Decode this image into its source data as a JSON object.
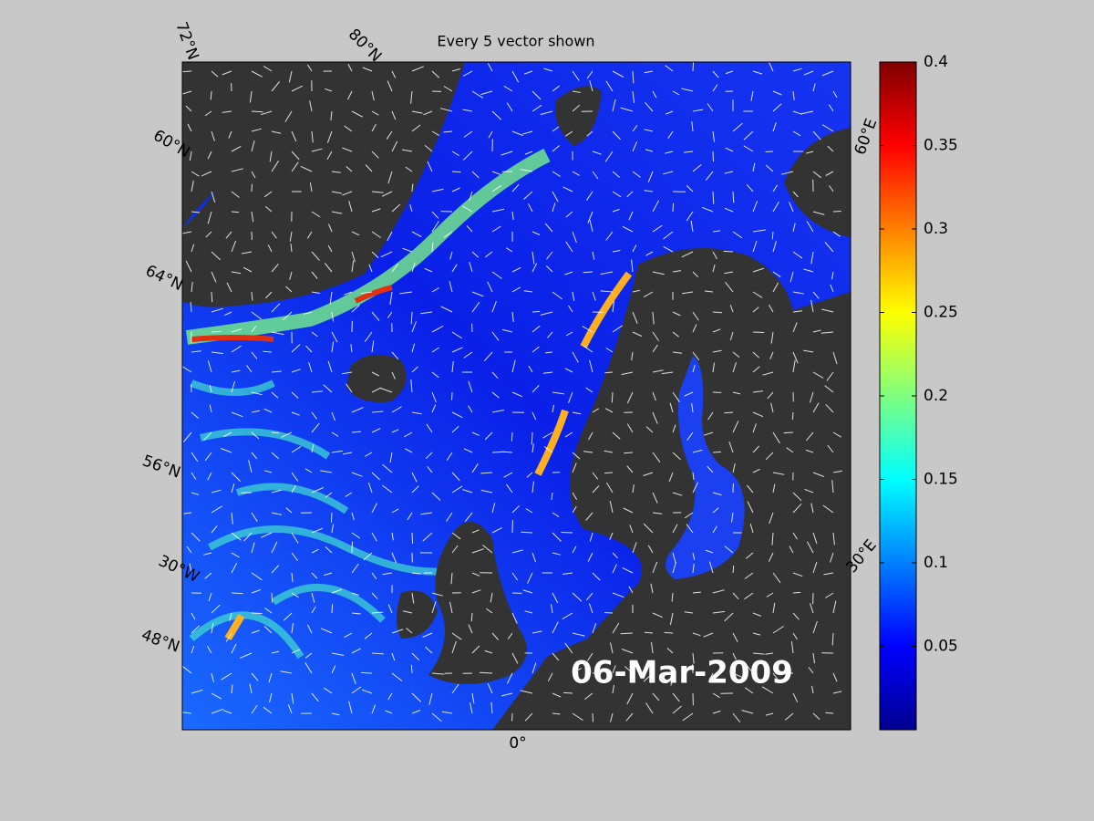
{
  "title": "Every 5 vector shown",
  "date_label": "06-Mar-2009",
  "map_labels": [
    "72°N",
    "80°N",
    "60°N",
    "64°N",
    "56°N",
    "30°W",
    "48°N",
    "0°",
    "60°E",
    "30°E"
  ],
  "colorbar": {
    "colormap": "jet",
    "lim": [
      0,
      0.4
    ],
    "ticks": [
      0.05,
      0.1,
      0.15,
      0.2,
      0.25,
      0.3,
      0.35,
      0.4
    ]
  }
}
